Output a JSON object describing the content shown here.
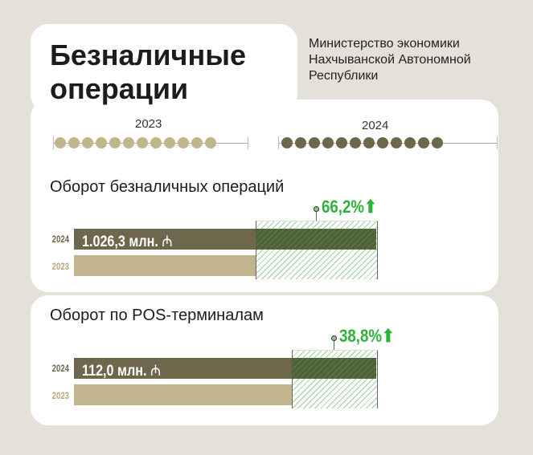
{
  "header": {
    "title_line1": "Безналичные",
    "title_line2": "операции",
    "ministry_line1": "Министерство экономики",
    "ministry_line2": "Нахчыванской Автономной",
    "ministry_line3": "Республики"
  },
  "timeline": {
    "year_a": "2023",
    "year_b": "2024",
    "dots_per_year": 12,
    "color_a": "#c2b48c",
    "color_b": "#6f674b"
  },
  "chart_data": [
    {
      "type": "bar",
      "title": "Оборот безналичных операций",
      "categories": [
        "2024",
        "2023"
      ],
      "value_2024_label": "1.026,3 млн.",
      "currency_icon": "manat-icon",
      "value_2024": 1026.3,
      "growth_label": "66,2%",
      "growth_percent": 66.2
    },
    {
      "type": "bar",
      "title": "Оборот по POS-терминалам",
      "categories": [
        "2024",
        "2023"
      ],
      "value_2024_label": "112,0 млн.",
      "currency_icon": "manat-icon",
      "value_2024": 112.0,
      "growth_label": "38,8%",
      "growth_percent": 38.8
    }
  ],
  "colors": {
    "bar_2024": "#6f674b",
    "bar_2023": "#c2b48c",
    "growth": "#2db33b"
  }
}
